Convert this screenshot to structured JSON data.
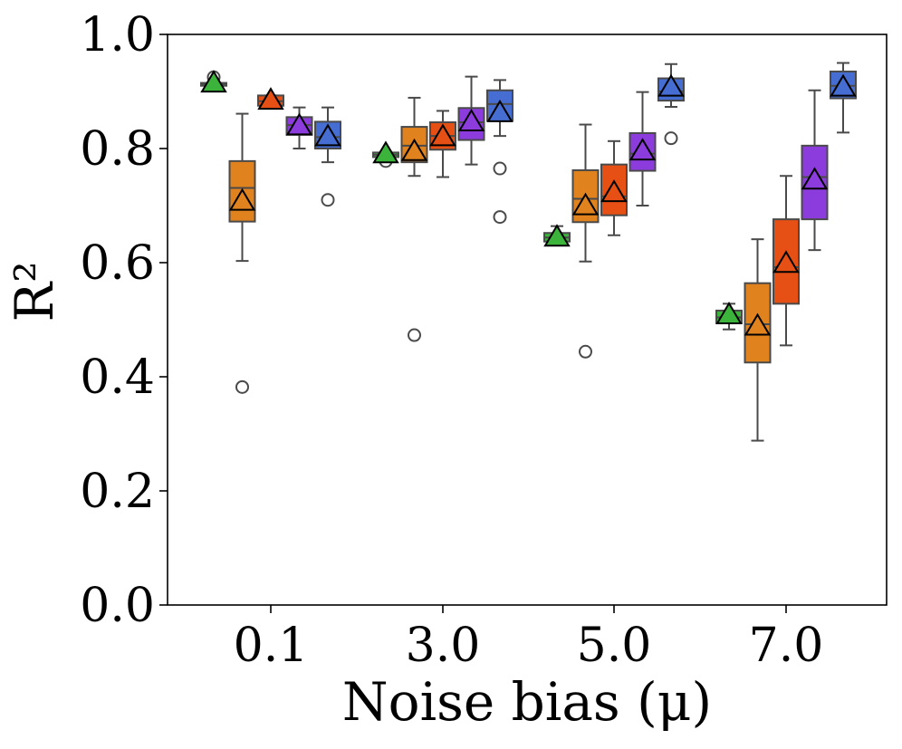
{
  "chart_data": {
    "type": "box",
    "xlabel": "Noise bias (μ)",
    "ylabel": "R²",
    "ylim": [
      0.0,
      1.0
    ],
    "yticks": [
      "0.0",
      "0.2",
      "0.4",
      "0.6",
      "0.8",
      "1.0"
    ],
    "categories": [
      "0.1",
      "3.0",
      "5.0",
      "7.0"
    ],
    "grid": false,
    "legend": "none",
    "series": [
      {
        "color": "#3cb43c",
        "boxes": [
          {
            "whislo": 0.91,
            "q1": 0.91,
            "med": 0.913,
            "q3": 0.915,
            "whishi": 0.915,
            "mean": 0.913,
            "fliers": [
              0.925
            ]
          },
          {
            "whislo": 0.785,
            "q1": 0.785,
            "med": 0.789,
            "q3": 0.793,
            "whishi": 0.793,
            "mean": 0.789,
            "fliers": [
              0.778
            ]
          },
          {
            "whislo": 0.637,
            "q1": 0.637,
            "med": 0.644,
            "q3": 0.652,
            "whishi": 0.664,
            "mean": 0.643,
            "fliers": []
          },
          {
            "whislo": 0.483,
            "q1": 0.494,
            "med": 0.504,
            "q3": 0.516,
            "whishi": 0.528,
            "mean": 0.507,
            "fliers": []
          }
        ]
      },
      {
        "color": "#e0821e",
        "boxes": [
          {
            "whislo": 0.603,
            "q1": 0.672,
            "med": 0.731,
            "q3": 0.778,
            "whishi": 0.861,
            "mean": 0.706,
            "fliers": [
              0.382
            ]
          },
          {
            "whislo": 0.752,
            "q1": 0.776,
            "med": 0.805,
            "q3": 0.838,
            "whishi": 0.889,
            "mean": 0.793,
            "fliers": [
              0.473
            ]
          },
          {
            "whislo": 0.602,
            "q1": 0.671,
            "med": 0.712,
            "q3": 0.762,
            "whishi": 0.842,
            "mean": 0.698,
            "fliers": [
              0.444
            ]
          },
          {
            "whislo": 0.288,
            "q1": 0.425,
            "med": 0.492,
            "q3": 0.564,
            "whishi": 0.641,
            "mean": 0.487,
            "fliers": []
          }
        ]
      },
      {
        "color": "#e65014",
        "boxes": [
          {
            "whislo": 0.875,
            "q1": 0.875,
            "med": 0.883,
            "q3": 0.893,
            "whishi": 0.893,
            "mean": 0.883,
            "fliers": []
          },
          {
            "whislo": 0.75,
            "q1": 0.798,
            "med": 0.822,
            "q3": 0.846,
            "whishi": 0.866,
            "mean": 0.819,
            "fliers": []
          },
          {
            "whislo": 0.648,
            "q1": 0.683,
            "med": 0.716,
            "q3": 0.772,
            "whishi": 0.813,
            "mean": 0.721,
            "fliers": []
          },
          {
            "whislo": 0.455,
            "q1": 0.528,
            "med": 0.592,
            "q3": 0.676,
            "whishi": 0.752,
            "mean": 0.597,
            "fliers": []
          }
        ]
      },
      {
        "color": "#8c3cdc",
        "boxes": [
          {
            "whislo": 0.8,
            "q1": 0.824,
            "med": 0.841,
            "q3": 0.855,
            "whishi": 0.872,
            "mean": 0.838,
            "fliers": []
          },
          {
            "whislo": 0.772,
            "q1": 0.815,
            "med": 0.846,
            "q3": 0.871,
            "whishi": 0.926,
            "mean": 0.845,
            "fliers": []
          },
          {
            "whislo": 0.7,
            "q1": 0.761,
            "med": 0.791,
            "q3": 0.827,
            "whishi": 0.899,
            "mean": 0.794,
            "fliers": []
          },
          {
            "whislo": 0.622,
            "q1": 0.676,
            "med": 0.75,
            "q3": 0.805,
            "whishi": 0.902,
            "mean": 0.743,
            "fliers": []
          }
        ]
      },
      {
        "color": "#466ed2",
        "boxes": [
          {
            "whislo": 0.776,
            "q1": 0.8,
            "med": 0.82,
            "q3": 0.847,
            "whishi": 0.872,
            "mean": 0.819,
            "fliers": [
              0.71
            ]
          },
          {
            "whislo": 0.822,
            "q1": 0.849,
            "med": 0.878,
            "q3": 0.902,
            "whishi": 0.92,
            "mean": 0.861,
            "fliers": [
              0.765,
              0.68
            ]
          },
          {
            "whislo": 0.873,
            "q1": 0.884,
            "med": 0.9,
            "q3": 0.923,
            "whishi": 0.948,
            "mean": 0.906,
            "fliers": [
              0.818
            ]
          },
          {
            "whislo": 0.828,
            "q1": 0.888,
            "med": 0.91,
            "q3": 0.935,
            "whishi": 0.95,
            "mean": 0.906,
            "fliers": []
          }
        ]
      }
    ]
  }
}
